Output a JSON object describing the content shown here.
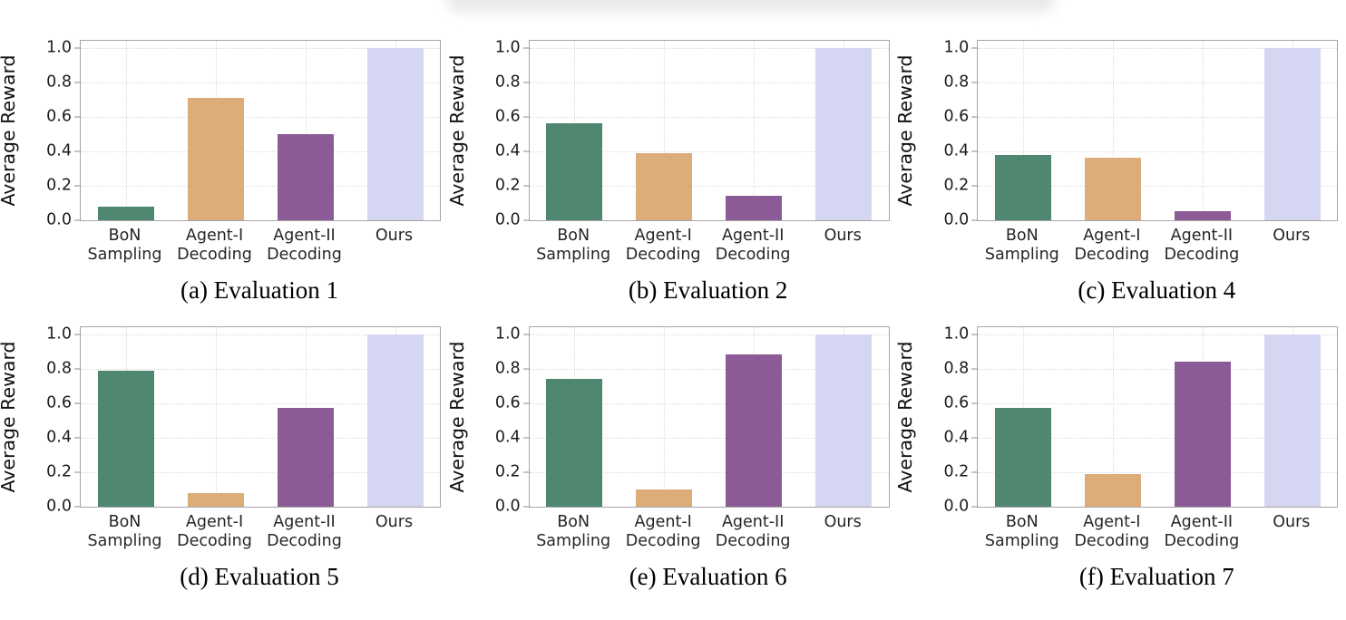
{
  "figure": {
    "ylabel": "Average Reward",
    "ytick_labels": [
      "0.0",
      "0.2",
      "0.4",
      "0.6",
      "0.8",
      "1.0"
    ],
    "category_lines": [
      [
        "BoN",
        "Sampling"
      ],
      [
        "Agent-I",
        "Decoding"
      ],
      [
        "Agent-II",
        "Decoding"
      ],
      [
        "Ours"
      ]
    ],
    "series_colors": {
      "bon_sampling": "#4f8770",
      "agent_i_decoding": "#dcac7a",
      "agent_ii_decoding": "#8d5a98",
      "ours": "#d5d7f2"
    },
    "spine_color": "#a6a6a6",
    "grid_color": "#dcdcdc"
  },
  "chart_data": [
    {
      "type": "bar",
      "title": "(a) Evaluation 1",
      "ylabel": "Average Reward",
      "categories": [
        "BoN Sampling",
        "Agent-I Decoding",
        "Agent-II Decoding",
        "Ours"
      ],
      "values": [
        0.08,
        0.71,
        0.5,
        1.0
      ],
      "bar_colors": [
        "#4f8770",
        "#dcac7a",
        "#8d5a98",
        "#d5d7f2"
      ],
      "ylim": [
        0,
        1.04
      ],
      "yticks": [
        0,
        0.2,
        0.4,
        0.6,
        0.8,
        1.0
      ],
      "grid": true,
      "legend": "none"
    },
    {
      "type": "bar",
      "title": "(b) Evaluation 2",
      "ylabel": "Average Reward",
      "categories": [
        "BoN Sampling",
        "Agent-I Decoding",
        "Agent-II Decoding",
        "Ours"
      ],
      "values": [
        0.56,
        0.39,
        0.14,
        1.0
      ],
      "bar_colors": [
        "#4f8770",
        "#dcac7a",
        "#8d5a98",
        "#d5d7f2"
      ],
      "ylim": [
        0,
        1.04
      ],
      "yticks": [
        0,
        0.2,
        0.4,
        0.6,
        0.8,
        1.0
      ],
      "grid": true,
      "legend": "none"
    },
    {
      "type": "bar",
      "title": "(c) Evaluation 4",
      "ylabel": "Average Reward",
      "categories": [
        "BoN Sampling",
        "Agent-I Decoding",
        "Agent-II Decoding",
        "Ours"
      ],
      "values": [
        0.38,
        0.36,
        0.05,
        1.0
      ],
      "bar_colors": [
        "#4f8770",
        "#dcac7a",
        "#8d5a98",
        "#d5d7f2"
      ],
      "ylim": [
        0,
        1.04
      ],
      "yticks": [
        0,
        0.2,
        0.4,
        0.6,
        0.8,
        1.0
      ],
      "grid": true,
      "legend": "none"
    },
    {
      "type": "bar",
      "title": "(d) Evaluation 5",
      "ylabel": "Average Reward",
      "categories": [
        "BoN Sampling",
        "Agent-I Decoding",
        "Agent-II Decoding",
        "Ours"
      ],
      "values": [
        0.79,
        0.08,
        0.57,
        1.0
      ],
      "bar_colors": [
        "#4f8770",
        "#dcac7a",
        "#8d5a98",
        "#d5d7f2"
      ],
      "ylim": [
        0,
        1.04
      ],
      "yticks": [
        0,
        0.2,
        0.4,
        0.6,
        0.8,
        1.0
      ],
      "grid": true,
      "legend": "none"
    },
    {
      "type": "bar",
      "title": "(e) Evaluation 6",
      "ylabel": "Average Reward",
      "categories": [
        "BoN Sampling",
        "Agent-I Decoding",
        "Agent-II Decoding",
        "Ours"
      ],
      "values": [
        0.74,
        0.1,
        0.88,
        1.0
      ],
      "bar_colors": [
        "#4f8770",
        "#dcac7a",
        "#8d5a98",
        "#d5d7f2"
      ],
      "ylim": [
        0,
        1.04
      ],
      "yticks": [
        0,
        0.2,
        0.4,
        0.6,
        0.8,
        1.0
      ],
      "grid": true,
      "legend": "none"
    },
    {
      "type": "bar",
      "title": "(f) Evaluation 7",
      "ylabel": "Average Reward",
      "categories": [
        "BoN Sampling",
        "Agent-I Decoding",
        "Agent-II Decoding",
        "Ours"
      ],
      "values": [
        0.57,
        0.19,
        0.84,
        1.0
      ],
      "bar_colors": [
        "#4f8770",
        "#dcac7a",
        "#8d5a98",
        "#d5d7f2"
      ],
      "ylim": [
        0,
        1.04
      ],
      "yticks": [
        0,
        0.2,
        0.4,
        0.6,
        0.8,
        1.0
      ],
      "grid": true,
      "legend": "none"
    }
  ]
}
